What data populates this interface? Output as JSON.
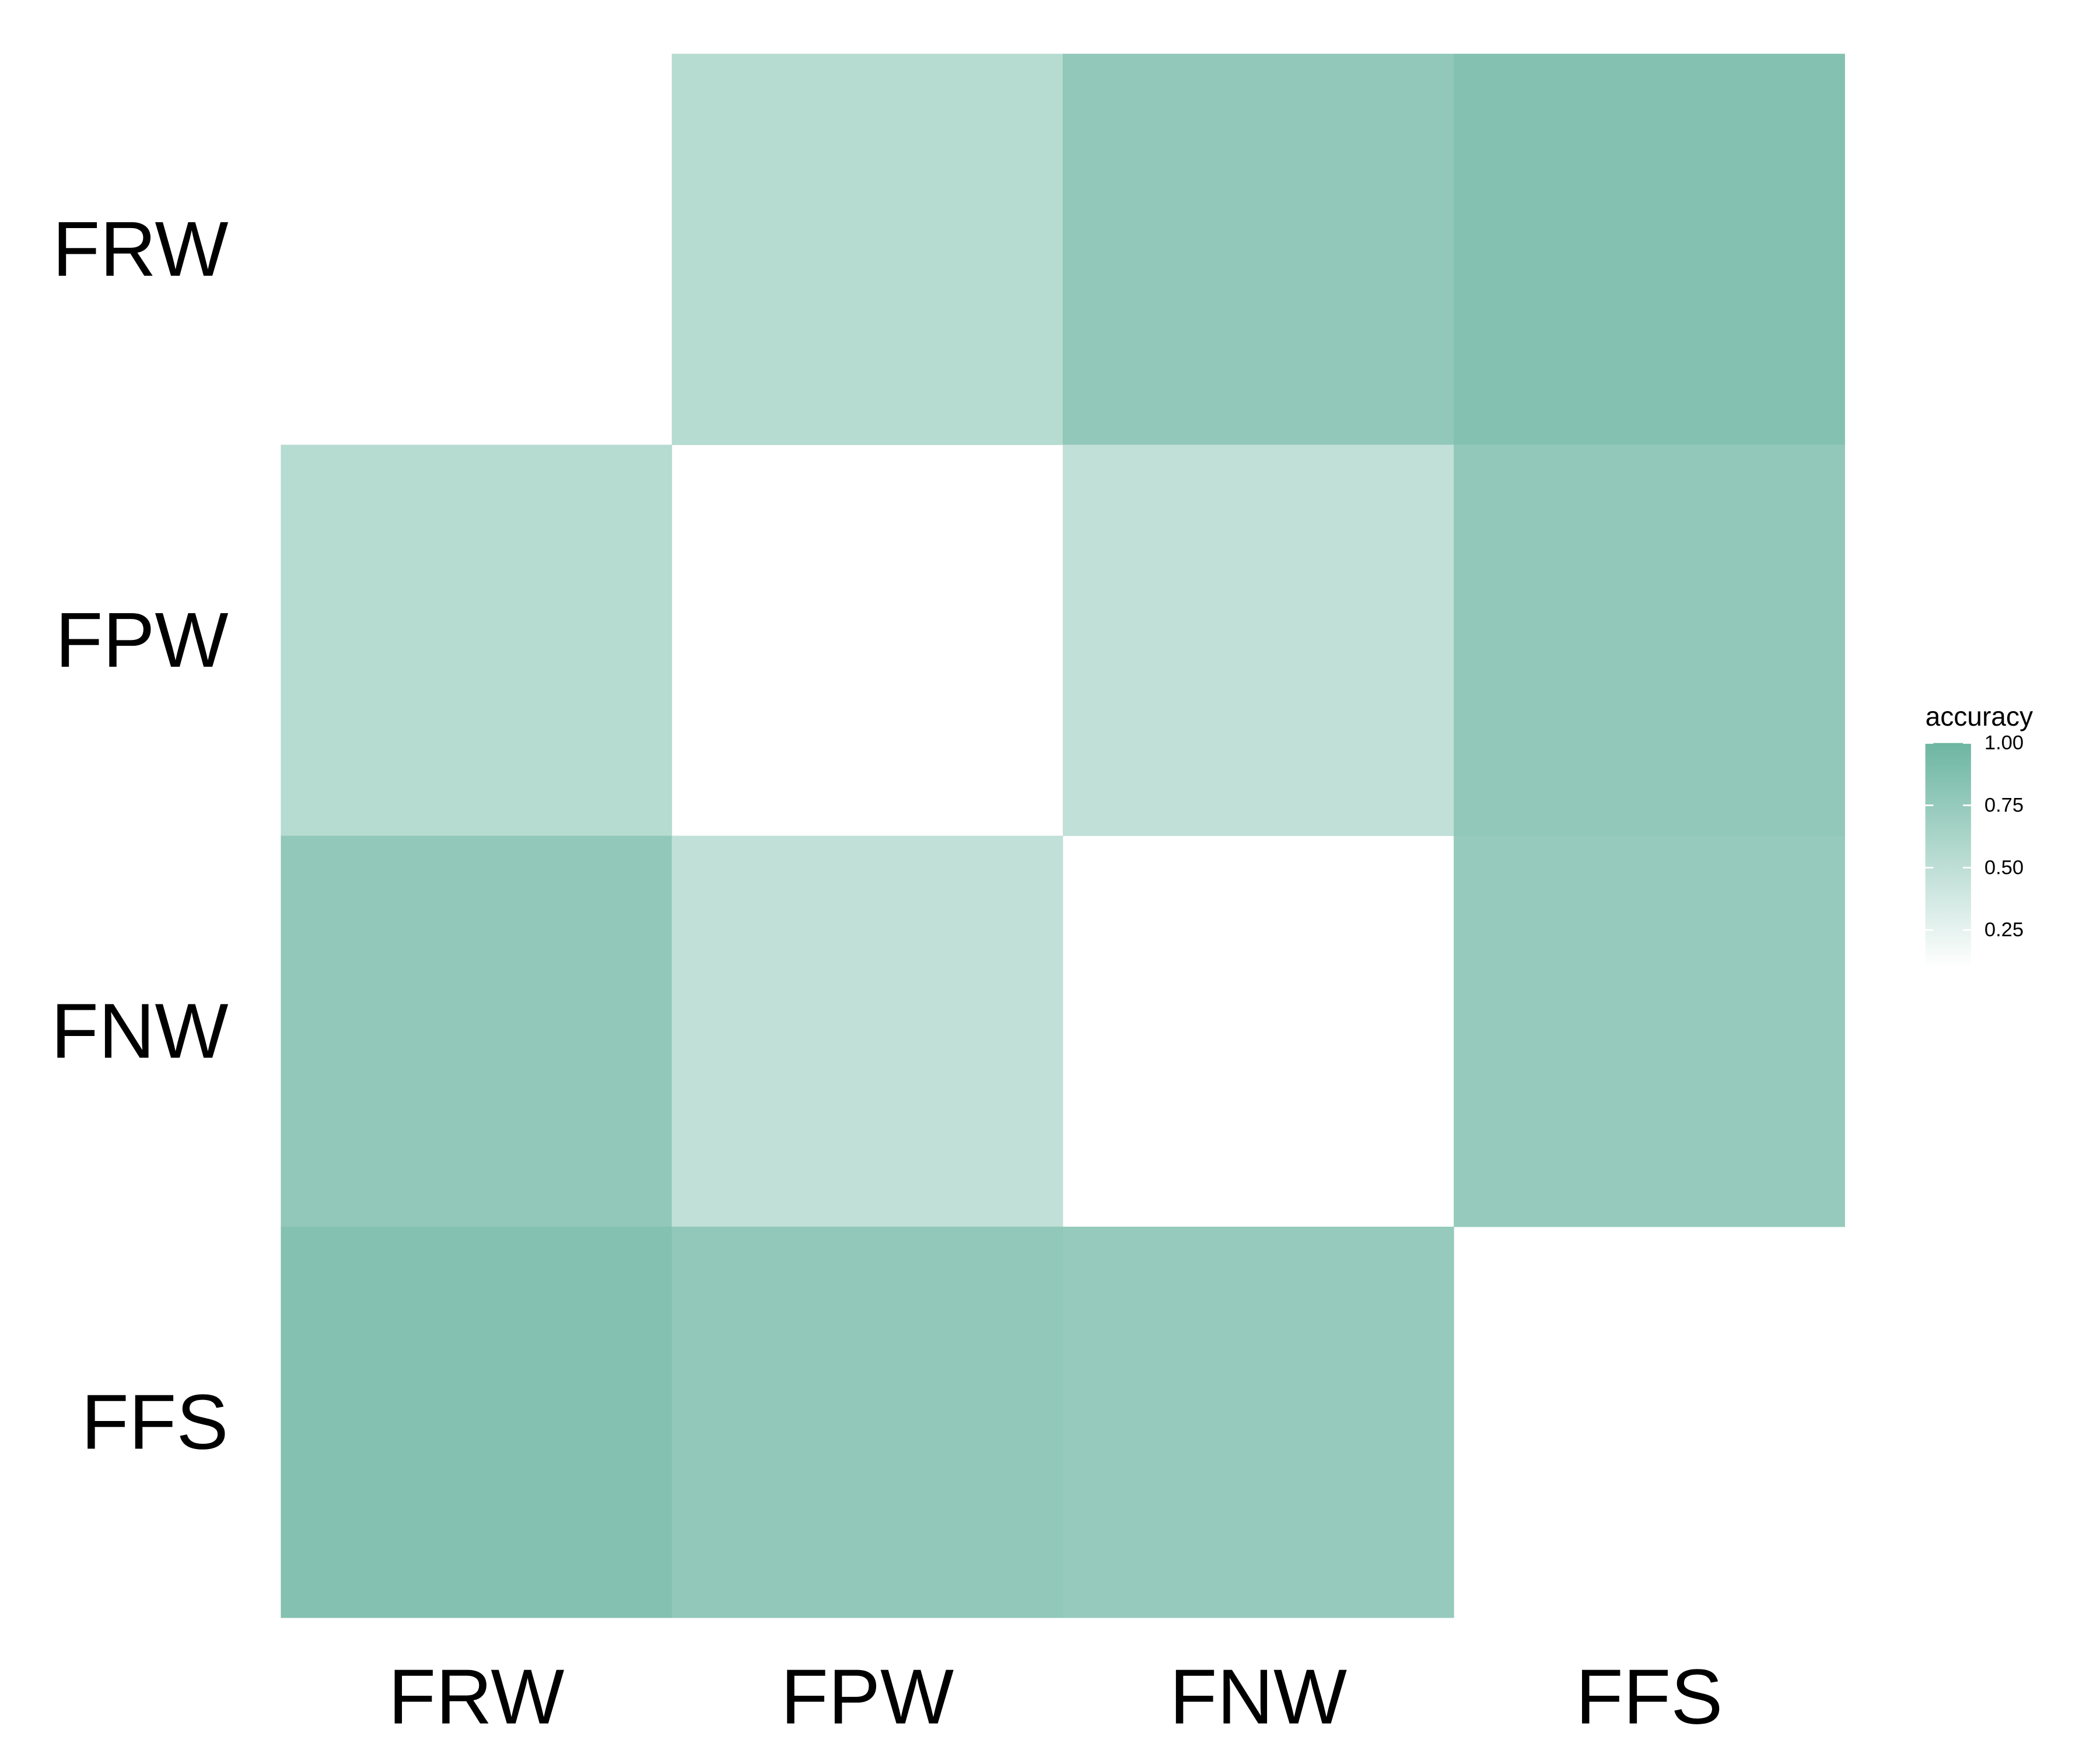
{
  "chart_data": {
    "type": "heatmap",
    "x_categories": [
      "FRW",
      "FPW",
      "FNW",
      "FFS"
    ],
    "y_categories": [
      "FRW",
      "FPW",
      "FNW",
      "FFS"
    ],
    "cells": [
      {
        "x": "FPW",
        "y": "FRW",
        "value": 0.55
      },
      {
        "x": "FNW",
        "y": "FRW",
        "value": 0.78
      },
      {
        "x": "FFS",
        "y": "FRW",
        "value": 0.86
      },
      {
        "x": "FRW",
        "y": "FPW",
        "value": 0.55
      },
      {
        "x": "FNW",
        "y": "FPW",
        "value": 0.48
      },
      {
        "x": "FFS",
        "y": "FPW",
        "value": 0.78
      },
      {
        "x": "FRW",
        "y": "FNW",
        "value": 0.78
      },
      {
        "x": "FPW",
        "y": "FNW",
        "value": 0.48
      },
      {
        "x": "FFS",
        "y": "FNW",
        "value": 0.75
      },
      {
        "x": "FRW",
        "y": "FFS",
        "value": 0.86
      },
      {
        "x": "FPW",
        "y": "FFS",
        "value": 0.78
      },
      {
        "x": "FNW",
        "y": "FFS",
        "value": 0.75
      }
    ],
    "legend": {
      "title": "accuracy",
      "ticks": [
        1.0,
        0.75,
        0.5,
        0.25
      ],
      "tick_labels": [
        "1.00",
        "0.75",
        "0.50",
        "0.25"
      ],
      "range": [
        0.1,
        1.0
      ],
      "placement": "right"
    },
    "colors": {
      "high": "#6db6a2",
      "low": "#ffffff"
    }
  }
}
